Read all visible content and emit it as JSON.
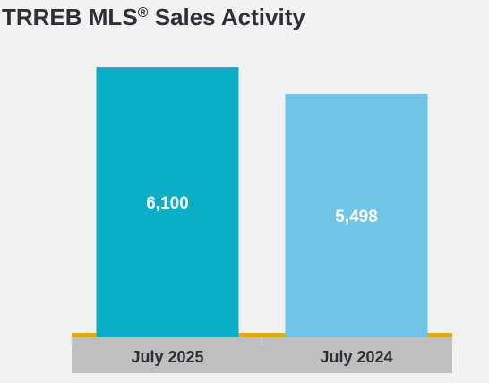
{
  "title": {
    "main": "TRREB MLS",
    "reg": "®",
    "rest": " Sales Activity"
  },
  "chart_data": {
    "type": "bar",
    "categories": [
      "July 2025",
      "July 2024"
    ],
    "values": [
      6100,
      5498
    ],
    "value_labels": [
      "6,100",
      "5,498"
    ],
    "colors": [
      "#0aaec7",
      "#70c4e8"
    ],
    "axis_band_color": "#bfbfbf",
    "baseline_color": "#e8a90c",
    "ylim": [
      0,
      6890
    ],
    "grid": false,
    "legend": "none"
  }
}
